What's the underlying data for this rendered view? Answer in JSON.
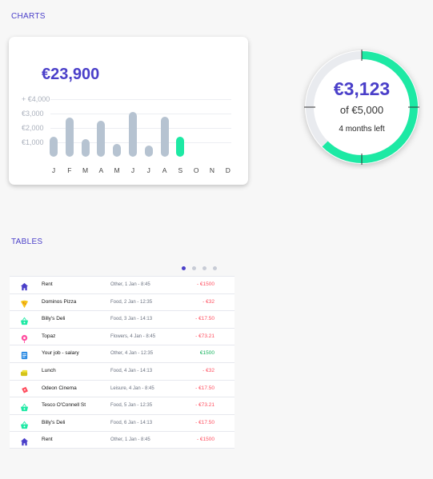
{
  "sections": {
    "charts_title": "CHARTS",
    "tables_title": "TABLES"
  },
  "colors": {
    "accent": "#4a3fc9",
    "mint": "#1de9a4",
    "bar": "#b6c3d1",
    "negative": "#ff4d5e",
    "positive": "#13b25c"
  },
  "chart_data": [
    {
      "type": "bar",
      "title": "€23,900",
      "categories": [
        "J",
        "F",
        "M",
        "A",
        "M",
        "J",
        "J",
        "A",
        "S",
        "O",
        "N",
        "D"
      ],
      "values": [
        1400,
        2700,
        1200,
        2500,
        900,
        3100,
        800,
        2800,
        1400,
        null,
        null,
        null
      ],
      "highlight_index": 8,
      "y_tick_labels": [
        "+ €4,000",
        "€3,000",
        "€2,000",
        "€1,000"
      ],
      "ylim": [
        0,
        4000
      ],
      "grid": true
    },
    {
      "type": "pie",
      "center_value": "€3,123",
      "center_of": "of  €5,000",
      "center_caption": "4 months left",
      "value": 3123,
      "total": 5000
    }
  ],
  "transactions": [
    {
      "icon": "home-icon",
      "name": "Rent",
      "meta": "Other, 1 Jan - 8:45",
      "amount": "- €1500",
      "positive": false
    },
    {
      "icon": "pizza-icon",
      "name": "Dominos Pizza",
      "meta": "Food, 2 Jan - 12:35",
      "amount": "- €32",
      "positive": false
    },
    {
      "icon": "basket-icon",
      "name": "Billy's Deli",
      "meta": "Food, 3 Jan - 14:13",
      "amount": "- €17.50",
      "positive": false
    },
    {
      "icon": "flower-icon",
      "name": "Topaz",
      "meta": "Flowers,  4 Jan - 8:45",
      "amount": "- €73.21",
      "positive": false
    },
    {
      "icon": "document-icon",
      "name": "Your job - salary",
      "meta": "Other, 4 Jan - 12:35",
      "amount": "€1500",
      "positive": true
    },
    {
      "icon": "lunch-icon",
      "name": "Lunch",
      "meta": "Food, 4 Jan - 14:13",
      "amount": "- €32",
      "positive": false
    },
    {
      "icon": "ticket-icon",
      "name": "Odeon Cinema",
      "meta": "Leisure, 4 Jan - 8:45",
      "amount": "- €17.50",
      "positive": false
    },
    {
      "icon": "basket-icon",
      "name": "Tesco O'Connell St",
      "meta": "Food, 5 Jan - 12:35",
      "amount": "- €73.21",
      "positive": false
    },
    {
      "icon": "basket-icon",
      "name": "Billy's Deli",
      "meta": "Food, 6 Jan - 14:13",
      "amount": "- €17.50",
      "positive": false
    },
    {
      "icon": "home-icon",
      "name": "Rent",
      "meta": "Other, 1 Jan - 8:45",
      "amount": "- €1500",
      "positive": false
    }
  ]
}
